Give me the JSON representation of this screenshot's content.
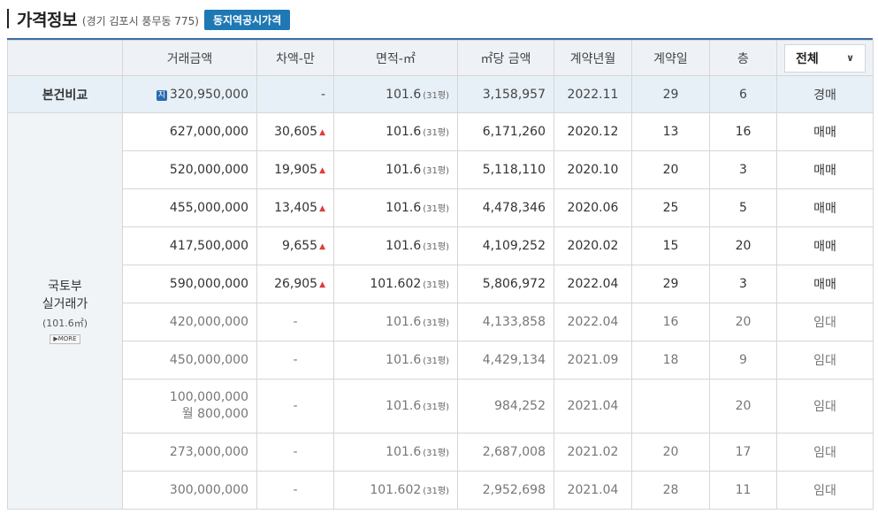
{
  "header": {
    "title": "가격정보",
    "address": "(경기 김포시 풍무동 775)",
    "button_label": "동지역공시가격"
  },
  "columns": {
    "price": "거래금액",
    "diff": "차액-만",
    "area": "면적-㎡",
    "per_m2": "㎡당 금액",
    "year_month": "계약년월",
    "day": "계약일",
    "floor": "층",
    "filter_selected": "전체"
  },
  "compare": {
    "label": "본건비교",
    "badge": "지",
    "price": "320,950,000",
    "diff": "-",
    "area": "101.6",
    "pyeong": "(31평)",
    "per_m2": "3,158,957",
    "year_month": "2022.11",
    "day": "29",
    "floor": "6",
    "type": "경매"
  },
  "side": {
    "line1": "국토부",
    "line2": "실거래가",
    "area": "(101.6㎡)",
    "more": "▶MORE"
  },
  "rows": [
    {
      "price": "627,000,000",
      "price2": "",
      "diff": "30,605",
      "up": "▲",
      "area": "101.6",
      "pyeong": "(31평)",
      "per_m2": "6,171,260",
      "year_month": "2020.12",
      "day": "13",
      "floor": "16",
      "type": "매매"
    },
    {
      "price": "520,000,000",
      "price2": "",
      "diff": "19,905",
      "up": "▲",
      "area": "101.6",
      "pyeong": "(31평)",
      "per_m2": "5,118,110",
      "year_month": "2020.10",
      "day": "20",
      "floor": "3",
      "type": "매매"
    },
    {
      "price": "455,000,000",
      "price2": "",
      "diff": "13,405",
      "up": "▲",
      "area": "101.6",
      "pyeong": "(31평)",
      "per_m2": "4,478,346",
      "year_month": "2020.06",
      "day": "25",
      "floor": "5",
      "type": "매매"
    },
    {
      "price": "417,500,000",
      "price2": "",
      "diff": "9,655",
      "up": "▲",
      "area": "101.6",
      "pyeong": "(31평)",
      "per_m2": "4,109,252",
      "year_month": "2020.02",
      "day": "15",
      "floor": "20",
      "type": "매매"
    },
    {
      "price": "590,000,000",
      "price2": "",
      "diff": "26,905",
      "up": "▲",
      "area": "101.602",
      "pyeong": "(31평)",
      "per_m2": "5,806,972",
      "year_month": "2022.04",
      "day": "29",
      "floor": "3",
      "type": "매매"
    },
    {
      "price": "420,000,000",
      "price2": "",
      "diff": "-",
      "up": "",
      "area": "101.6",
      "pyeong": "(31평)",
      "per_m2": "4,133,858",
      "year_month": "2022.04",
      "day": "16",
      "floor": "20",
      "type": "임대"
    },
    {
      "price": "450,000,000",
      "price2": "",
      "diff": "-",
      "up": "",
      "area": "101.6",
      "pyeong": "(31평)",
      "per_m2": "4,429,134",
      "year_month": "2021.09",
      "day": "18",
      "floor": "9",
      "type": "임대"
    },
    {
      "price": "100,000,000",
      "price2": "월 800,000",
      "diff": "-",
      "up": "",
      "area": "101.6",
      "pyeong": "(31평)",
      "per_m2": "984,252",
      "year_month": "2021.04",
      "day": "",
      "floor": "20",
      "type": "임대"
    },
    {
      "price": "273,000,000",
      "price2": "",
      "diff": "-",
      "up": "",
      "area": "101.6",
      "pyeong": "(31평)",
      "per_m2": "2,687,008",
      "year_month": "2021.02",
      "day": "20",
      "floor": "17",
      "type": "임대"
    },
    {
      "price": "300,000,000",
      "price2": "",
      "diff": "-",
      "up": "",
      "area": "101.602",
      "pyeong": "(31평)",
      "per_m2": "2,952,698",
      "year_month": "2021.04",
      "day": "28",
      "floor": "11",
      "type": "임대"
    }
  ],
  "colors": {
    "accent": "#1e78b4",
    "increase": "#e23b3b",
    "compare_row": "#e8f0f7",
    "header_bg": "#eef2f6"
  }
}
